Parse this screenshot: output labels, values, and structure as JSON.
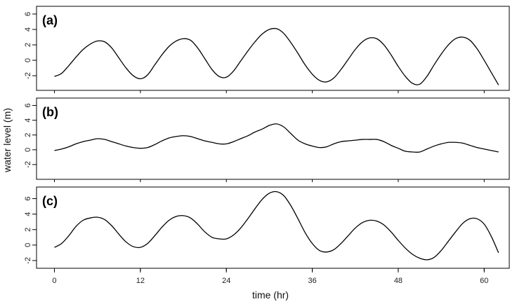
{
  "chart_data": {
    "type": "line",
    "xlabel": "time (hr)",
    "ylabel": "water level (m)",
    "xlim": [
      -2.5,
      63.5
    ],
    "x_ticks": [
      0,
      12,
      24,
      36,
      48,
      60
    ],
    "x_tick_labels": [
      "0",
      "12",
      "24",
      "36",
      "48",
      "60"
    ],
    "grid": false,
    "line_color": "#000000",
    "panels": [
      {
        "label": "(a)",
        "ylim": [
          -3.9,
          7.0
        ],
        "y_ticks": [
          -2,
          0,
          2,
          4,
          6
        ],
        "y_tick_labels": [
          "-2",
          "0",
          "2",
          "4",
          "6"
        ],
        "x": [
          0,
          1,
          2,
          3,
          4,
          5,
          6,
          7,
          8,
          9,
          10,
          11,
          12,
          13,
          14,
          15,
          16,
          17,
          18,
          19,
          20,
          21,
          22,
          23,
          24,
          25,
          26,
          27,
          28,
          29,
          30,
          31,
          32,
          33,
          34,
          35,
          36,
          37,
          38,
          39,
          40,
          41,
          42,
          43,
          44,
          45,
          46,
          47,
          48,
          49,
          50,
          51,
          52,
          53,
          54,
          55,
          56,
          57,
          58,
          59,
          60,
          61,
          62
        ],
        "y": [
          -2.1,
          -1.7,
          -0.7,
          0.4,
          1.4,
          2.1,
          2.5,
          2.4,
          1.6,
          0.3,
          -1.0,
          -2.0,
          -2.4,
          -1.9,
          -0.6,
          0.7,
          1.8,
          2.5,
          2.8,
          2.6,
          1.6,
          0.2,
          -1.2,
          -2.1,
          -2.2,
          -1.4,
          -0.1,
          1.2,
          2.4,
          3.4,
          4.0,
          4.1,
          3.5,
          2.3,
          0.9,
          -0.6,
          -1.8,
          -2.6,
          -2.8,
          -2.3,
          -1.2,
          0.1,
          1.4,
          2.4,
          2.9,
          2.8,
          2.0,
          0.7,
          -0.8,
          -2.1,
          -3.0,
          -3.1,
          -2.1,
          -0.6,
          0.8,
          2.0,
          2.8,
          3.0,
          2.6,
          1.5,
          0.0,
          -1.6,
          -3.2
        ]
      },
      {
        "label": "(b)",
        "ylim": [
          -4.0,
          7.0
        ],
        "y_ticks": [
          -2,
          0,
          2,
          4,
          6
        ],
        "y_tick_labels": [
          "-2",
          "0",
          "2",
          "4",
          "6"
        ],
        "x": [
          0,
          1,
          2,
          3,
          4,
          5,
          6,
          7,
          8,
          9,
          10,
          11,
          12,
          13,
          14,
          15,
          16,
          17,
          18,
          19,
          20,
          21,
          22,
          23,
          24,
          25,
          26,
          27,
          28,
          29,
          30,
          31,
          32,
          33,
          34,
          35,
          36,
          37,
          38,
          39,
          40,
          41,
          42,
          43,
          44,
          45,
          46,
          47,
          48,
          49,
          50,
          51,
          52,
          53,
          54,
          55,
          56,
          57,
          58,
          59,
          60,
          61,
          62
        ],
        "y": [
          -0.1,
          0.1,
          0.4,
          0.8,
          1.1,
          1.3,
          1.5,
          1.4,
          1.1,
          0.8,
          0.5,
          0.3,
          0.2,
          0.3,
          0.7,
          1.2,
          1.6,
          1.8,
          1.9,
          1.8,
          1.5,
          1.2,
          1.0,
          0.8,
          0.8,
          1.1,
          1.5,
          1.9,
          2.4,
          2.8,
          3.3,
          3.5,
          3.1,
          2.2,
          1.3,
          0.8,
          0.5,
          0.3,
          0.4,
          0.8,
          1.1,
          1.2,
          1.3,
          1.4,
          1.4,
          1.4,
          1.1,
          0.6,
          0.2,
          -0.2,
          -0.3,
          -0.3,
          0.1,
          0.5,
          0.8,
          1.0,
          1.0,
          0.9,
          0.6,
          0.3,
          0.1,
          -0.1,
          -0.3
        ]
      },
      {
        "label": "(c)",
        "ylim": [
          -3.0,
          7.5
        ],
        "y_ticks": [
          -2,
          0,
          2,
          4,
          6
        ],
        "y_tick_labels": [
          "-2",
          "0",
          "2",
          "4",
          "6"
        ],
        "x": [
          0,
          1,
          2,
          3,
          4,
          5,
          6,
          7,
          8,
          9,
          10,
          11,
          12,
          13,
          14,
          15,
          16,
          17,
          18,
          19,
          20,
          21,
          22,
          23,
          24,
          25,
          26,
          27,
          28,
          29,
          30,
          31,
          32,
          33,
          34,
          35,
          36,
          37,
          38,
          39,
          40,
          41,
          42,
          43,
          44,
          45,
          46,
          47,
          48,
          49,
          50,
          51,
          52,
          53,
          54,
          55,
          56,
          57,
          58,
          59,
          60,
          61,
          62
        ],
        "y": [
          -0.3,
          0.2,
          1.2,
          2.4,
          3.2,
          3.5,
          3.6,
          3.3,
          2.5,
          1.4,
          0.4,
          -0.2,
          -0.3,
          0.2,
          1.2,
          2.3,
          3.2,
          3.7,
          3.8,
          3.5,
          2.7,
          1.7,
          1.0,
          0.8,
          0.8,
          1.3,
          2.2,
          3.4,
          4.7,
          5.9,
          6.7,
          6.9,
          6.4,
          5.1,
          3.4,
          1.6,
          0.2,
          -0.7,
          -0.9,
          -0.6,
          0.2,
          1.2,
          2.2,
          2.9,
          3.2,
          3.1,
          2.6,
          1.7,
          0.6,
          -0.4,
          -1.2,
          -1.7,
          -1.9,
          -1.6,
          -0.7,
          0.5,
          1.7,
          2.8,
          3.4,
          3.4,
          2.7,
          1.1,
          -1.0
        ]
      }
    ]
  }
}
